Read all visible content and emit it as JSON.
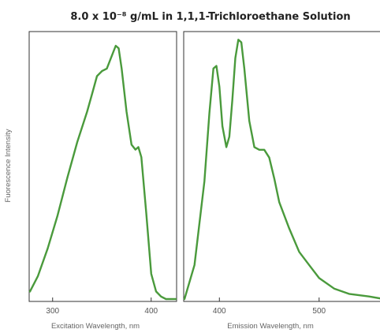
{
  "chart_data": {
    "title": "8.0 x 10⁻⁸ g/mL in 1,1,1-Trichloroethane Solution",
    "ylabel": "Fuorescence Intensity",
    "line_color": "#4a9a3c",
    "panels": [
      {
        "type": "line",
        "xlabel": "Excitation Wavelength, nm",
        "xlim": [
          277,
          425
        ],
        "ylim": [
          0,
          100
        ],
        "xticks": [
          300,
          400
        ],
        "x": [
          277,
          285,
          295,
          305,
          315,
          325,
          335,
          340,
          345,
          350,
          355,
          360,
          364,
          367,
          370,
          375,
          380,
          384,
          387,
          390,
          395,
          400,
          405,
          410,
          415,
          425
        ],
        "y": [
          3,
          9,
          20,
          33,
          48,
          62,
          74,
          81,
          88,
          90,
          91,
          96,
          100,
          99,
          91,
          74,
          61,
          59,
          60,
          56,
          34,
          10,
          3,
          1,
          0,
          0
        ]
      },
      {
        "type": "line",
        "xlabel": "Emission Wavelength, nm",
        "xlim": [
          365,
          565
        ],
        "ylim": [
          0,
          100
        ],
        "xticks": [
          400,
          500
        ],
        "x": [
          365,
          375,
          385,
          390,
          394,
          397,
          400,
          403,
          407,
          410,
          413,
          416,
          419,
          422,
          425,
          430,
          435,
          440,
          445,
          450,
          455,
          460,
          470,
          480,
          490,
          500,
          515,
          530,
          550,
          565
        ],
        "y": [
          0,
          13,
          45,
          71,
          88,
          89,
          81,
          66,
          58,
          62,
          76,
          92,
          99,
          98,
          88,
          68,
          58,
          57,
          57,
          54,
          46,
          37,
          27,
          18,
          13,
          8,
          4,
          2,
          1,
          0
        ]
      }
    ]
  }
}
